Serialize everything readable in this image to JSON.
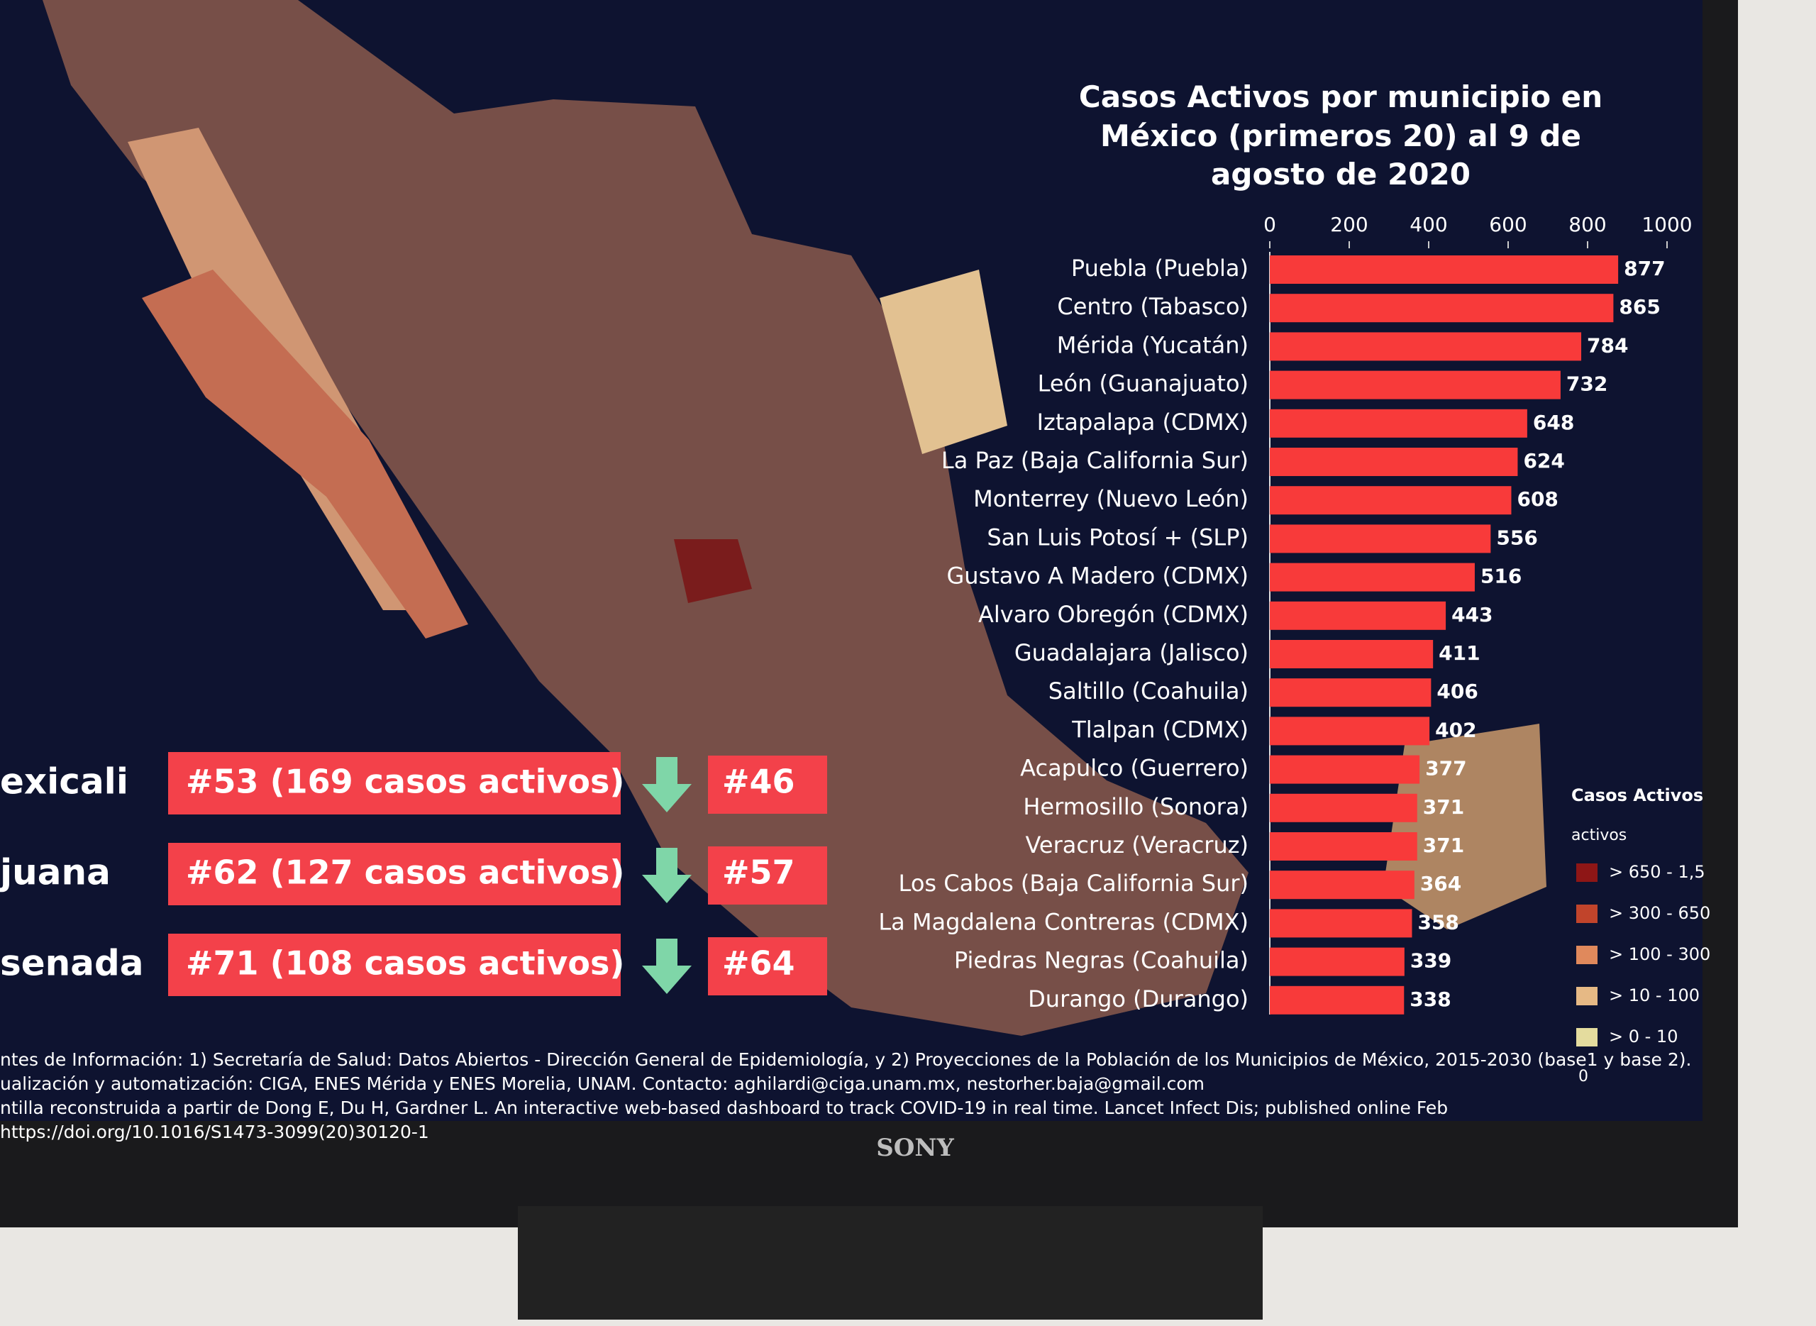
{
  "chart_data": {
    "type": "bar",
    "orientation": "horizontal",
    "title": "Casos Activos por municipio en México (primeros 20) al 9 de agosto de 2020",
    "categories": [
      "Puebla (Puebla)",
      "Centro (Tabasco)",
      "Mérida (Yucatán)",
      "León (Guanajuato)",
      "Iztapalapa (CDMX)",
      "La Paz (Baja California Sur)",
      "Monterrey (Nuevo León)",
      "San Luis Potosí + (SLP)",
      "Gustavo A Madero (CDMX)",
      "Alvaro Obregón (CDMX)",
      "Guadalajara (Jalisco)",
      "Saltillo (Coahuila)",
      "Tlalpan (CDMX)",
      "Acapulco (Guerrero)",
      "Hermosillo (Sonora)",
      "Veracruz (Veracruz)",
      "Los Cabos (Baja California Sur)",
      "La Magdalena Contreras (CDMX)",
      "Piedras Negras (Coahuila)",
      "Durango (Durango)"
    ],
    "values": [
      877,
      865,
      784,
      732,
      648,
      624,
      608,
      556,
      516,
      443,
      411,
      406,
      402,
      377,
      371,
      371,
      364,
      358,
      339,
      338
    ],
    "color": "#f83a3a",
    "xlim": [
      0,
      1000
    ],
    "xticks": [
      0,
      200,
      400,
      600,
      800,
      1000
    ]
  },
  "rankings": [
    {
      "place": "exicali",
      "rank": "#53 (169 casos activos)",
      "new_rank": "#46"
    },
    {
      "place": "juana",
      "rank": "#62 (127 casos activos)",
      "new_rank": "#57"
    },
    {
      "place": "senada",
      "rank": "#71 (108 casos activos)",
      "new_rank": "#64"
    }
  ],
  "legend": {
    "title": "Casos Activos",
    "subtitle": "activos",
    "items": [
      {
        "label": "> 650 - 1,5",
        "color": "#8e1616"
      },
      {
        "label": "> 300 - 650",
        "color": "#c1442b"
      },
      {
        "label": "> 100 - 300",
        "color": "#e0895c"
      },
      {
        "label": "> 10 - 100",
        "color": "#e6b985"
      },
      {
        "label": "> 0 - 10",
        "color": "#e4dc9e"
      }
    ],
    "zero": "0"
  },
  "footer": [
    "ntes de Información: 1) Secretaría de Salud: Datos Abiertos - Dirección General de Epidemiología, y 2) Proyecciones de la Población de los Municipios de México, 2015-2030 (base1 y base 2).",
    "ualización y automatización: CIGA, ENES Mérida y ENES Morelia, UNAM. Contacto: aghilardi@ciga.unam.mx, nestorher.baja@gmail.com",
    "ntilla reconstruida a partir de Dong E, Du H, Gardner L. An interactive web-based dashboard to track COVID-19 in real time. Lancet Infect Dis; published online Feb",
    "https://doi.org/10.1016/S1473-3099(20)30120-1"
  ],
  "brand": "SONY"
}
